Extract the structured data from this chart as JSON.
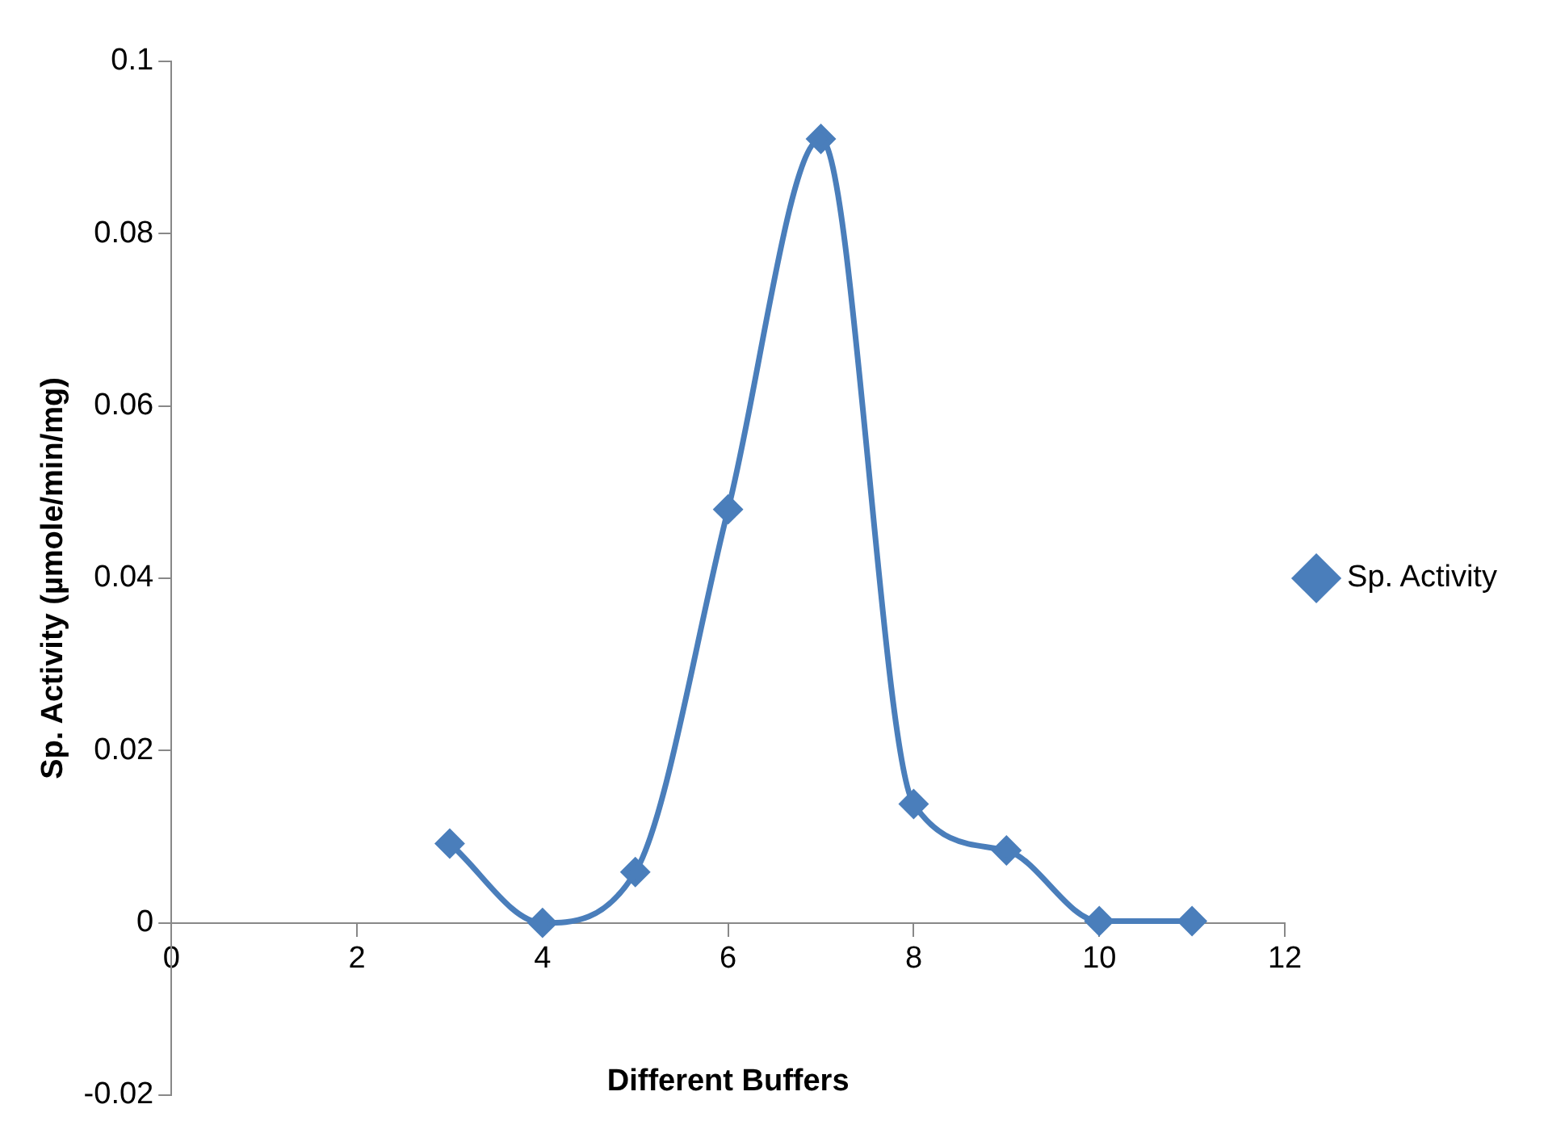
{
  "chart_data": {
    "type": "line",
    "xlabel": "Different Buffers",
    "ylabel": "Sp. Activity (µmole/min/mg)",
    "x": [
      3,
      4,
      5,
      6,
      7,
      8,
      9,
      10,
      11
    ],
    "series": [
      {
        "name": "Sp. Activity",
        "color": "#4a7ebb",
        "values": [
          0.0092,
          0,
          0.0059,
          0.048,
          0.091,
          0.0138,
          0.0084,
          0.0002,
          0.0002
        ]
      }
    ],
    "xlim": [
      0,
      12
    ],
    "xticks": [
      0,
      2,
      4,
      6,
      8,
      10,
      12
    ],
    "ylim": [
      -0.02,
      0.1
    ],
    "yticks": [
      -0.02,
      0,
      0.02,
      0.04,
      0.06,
      0.08,
      0.1
    ],
    "grid": false,
    "legend": "right",
    "marker": "diamond",
    "line_style": "solid"
  }
}
